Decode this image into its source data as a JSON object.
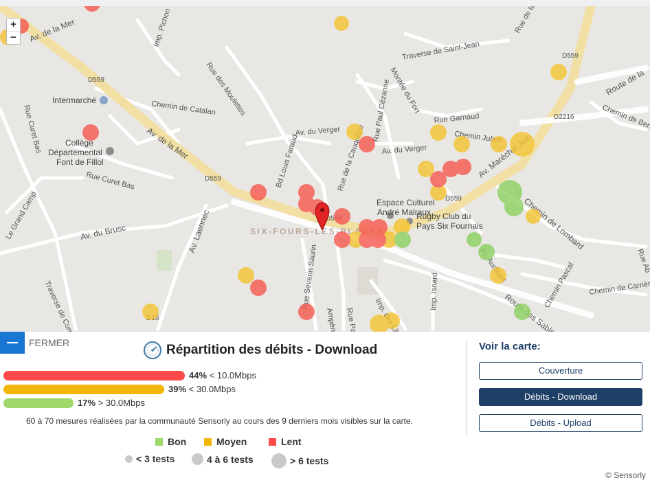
{
  "map": {
    "zoom_in": "+",
    "zoom_out": "−",
    "labels": {
      "av_de_la_mer_1": "Av. de la Mer",
      "av_de_la_mer_2": "Av. de la Mer",
      "d559_1": "D559",
      "d559_2": "D559",
      "d559_3": "D559",
      "d559_4": "D559",
      "d559_5": "D559",
      "d2216": "D2216",
      "d16": "D16",
      "intermarche": "Intermarché",
      "chemin_catalan": "Chemin de Catalan",
      "rue_curet_bas_1": "Rue Curet Bas",
      "rue_curet_bas_2": "Rue Curet Bas",
      "college_1": "Collège",
      "college_2": "Départemental",
      "college_3": "Font de Fillol",
      "av_du_brusc": "Av. du Brusc",
      "le_grand_camp": "Le Grand Camp",
      "av_laennec": "Av. Laennec",
      "traverse_curet": "Traverse de Curet",
      "bd_louis_faraud": "Bd Louis Faraud",
      "rue_cauquiere": "Rue de la Cauquière",
      "av_du_verger_1": "Av. du Verger",
      "av_du_verger_2": "Av. du Verger",
      "rue_paul_cezanne": "Rue Paul Cézanne",
      "montee_du_fort": "Montée du Fort",
      "traverse_saint_jean": "Traverse de Saint-Jean",
      "rue_garnaud": "Rue Garnaud",
      "chemin_julien": "Chemin Julien",
      "av_marechal_juin": "Av. Maréchal Juin",
      "espace_1": "Espace Culturel",
      "espace_2": "André Malraux",
      "rugby_1": "Rugby Club du",
      "rugby_2": "Pays Six Fournais",
      "six_fours": "SIX-FOURS-LES-PLAGES",
      "chemin_lombard": "Chemin de Lombard",
      "av_audibert": "Av. Audibert",
      "route_sablettes": "Route des Sablettes",
      "chemin_pascal": "Chemin Pascal",
      "chemin_carriere": "Chemin de Carrière",
      "imp_isnard": "Imp. Isnard",
      "rue_severin_saurin": "Rue Severin Saurin",
      "imp_des_lilas": "Imp. des Lilas",
      "rue_ampere": "Ampère",
      "rue_pa": "Rue Pa",
      "rue_moulettes": "Rue des Moulettes",
      "imp_pichon": "Imp. Pichon",
      "route_de_la": "Route de la",
      "chemin_bersly": "Chemin de Bersly",
      "rue_collegiale": "Rue de la Collégiale",
      "rue_ab": "Rue Ab"
    }
  },
  "panel": {
    "close_label": "FERMER",
    "title": "Répartition des débits - Download",
    "bars": [
      {
        "percent_text": "44%",
        "range_text": "< 10.0Mbps",
        "fraction": 0.44,
        "color": "#ff4a4a"
      },
      {
        "percent_text": "39%",
        "range_text": "< 30.0Mbps",
        "fraction": 0.39,
        "color": "#f2b705"
      },
      {
        "percent_text": "17%",
        "range_text": "> 30.0Mbps",
        "fraction": 0.17,
        "color": "#9fd86b"
      }
    ],
    "note": "60 à 70 mesures réalisées par la communauté Sensorly au cours des 9 derniers mois visibles sur la carte.",
    "legend": [
      {
        "label": "Bon",
        "color": "#9fd86b"
      },
      {
        "label": "Moyen",
        "color": "#f2b705"
      },
      {
        "label": "Lent",
        "color": "#ff4a4a"
      }
    ],
    "size_legend": [
      "< 3 tests",
      "4 à 6 tests",
      "> 6 tests"
    ]
  },
  "sidebar": {
    "title": "Voir la carte:",
    "buttons": [
      {
        "label": "Couverture",
        "active": false
      },
      {
        "label": "Débits - Download",
        "active": true
      },
      {
        "label": "Débits - Upload",
        "active": false
      }
    ]
  },
  "footer": {
    "copyright": "© Sensorly"
  },
  "colors": {
    "accent": "#1e3f66",
    "close_button": "#1976d2",
    "good": "#9fd86b",
    "medium": "#f2b705",
    "slow": "#ff4a4a"
  }
}
